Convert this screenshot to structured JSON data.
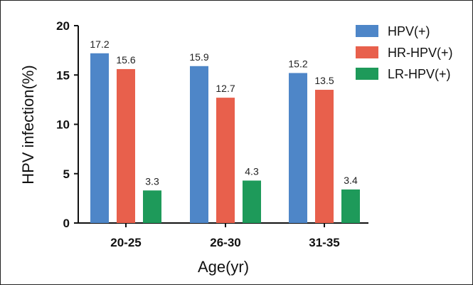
{
  "chart_data": {
    "type": "bar",
    "categories": [
      "20-25",
      "26-30",
      "31-35"
    ],
    "series": [
      {
        "name": "HPV(+)",
        "values": [
          17.2,
          15.9,
          15.2
        ],
        "color": "#4e86c8"
      },
      {
        "name": "HR-HPV(+)",
        "values": [
          15.6,
          12.7,
          13.5
        ],
        "color": "#e8604c"
      },
      {
        "name": "LR-HPV(+)",
        "values": [
          3.3,
          4.3,
          3.4
        ],
        "color": "#1e9a5a"
      }
    ],
    "data_labels": [
      [
        "17.2",
        "15.6",
        "3.3"
      ],
      [
        "15.9",
        "12.7",
        "4.3"
      ],
      [
        "15.2",
        "13.5",
        "3.4"
      ]
    ],
    "yticks": [
      "0",
      "5",
      "10",
      "15",
      "20"
    ],
    "xlabel": "Age(yr)",
    "ylabel": "HPV infection(%)",
    "ylim": [
      0,
      20
    ],
    "grid": false,
    "legend_position": "top-right"
  }
}
